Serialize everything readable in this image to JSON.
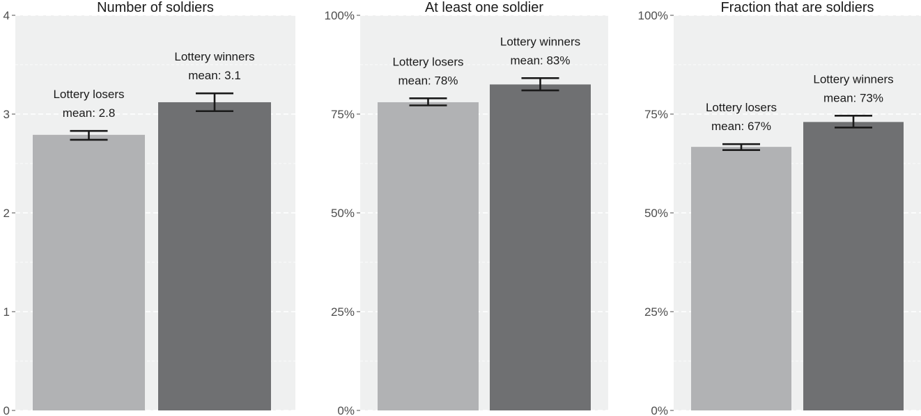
{
  "chart_data": [
    {
      "type": "bar",
      "title": "Number of soldiers",
      "xlabel": "",
      "ylabel": "",
      "ylim": [
        0,
        4
      ],
      "yticks": [
        0,
        1,
        2,
        3,
        4
      ],
      "ytick_labels": [
        "0",
        "1",
        "2",
        "3",
        "4"
      ],
      "grid": true,
      "series": [
        {
          "name": "Lottery losers",
          "value": 2.79,
          "ci": [
            2.74,
            2.83
          ],
          "label_line1": "Lottery losers",
          "label_line2": "mean: 2.8",
          "color": "#b1b2b4"
        },
        {
          "name": "Lottery winners",
          "value": 3.12,
          "ci": [
            3.03,
            3.21
          ],
          "label_line1": "Lottery winners",
          "label_line2": "mean: 3.1",
          "color": "#6f7072"
        }
      ]
    },
    {
      "type": "bar",
      "title": "At least one soldier",
      "xlabel": "",
      "ylabel": "",
      "ylim": [
        0,
        1
      ],
      "yticks": [
        0,
        0.25,
        0.5,
        0.75,
        1
      ],
      "ytick_labels": [
        "0%",
        "25%",
        "50%",
        "75%",
        "100%"
      ],
      "grid": true,
      "series": [
        {
          "name": "Lottery losers",
          "value": 0.78,
          "ci": [
            0.772,
            0.79
          ],
          "label_line1": "Lottery losers",
          "label_line2": "mean: 78%",
          "color": "#b1b2b4"
        },
        {
          "name": "Lottery winners",
          "value": 0.825,
          "ci": [
            0.81,
            0.841
          ],
          "label_line1": "Lottery winners",
          "label_line2": "mean: 83%",
          "color": "#6f7072"
        }
      ]
    },
    {
      "type": "bar",
      "title": "Fraction that are soldiers",
      "xlabel": "",
      "ylabel": "",
      "ylim": [
        0,
        1
      ],
      "yticks": [
        0,
        0.25,
        0.5,
        0.75,
        1
      ],
      "ytick_labels": [
        "0%",
        "25%",
        "50%",
        "75%",
        "100%"
      ],
      "grid": true,
      "series": [
        {
          "name": "Lottery losers",
          "value": 0.667,
          "ci": [
            0.659,
            0.674
          ],
          "label_line1": "Lottery losers",
          "label_line2": "mean: 67%",
          "color": "#b1b2b4"
        },
        {
          "name": "Lottery winners",
          "value": 0.73,
          "ci": [
            0.716,
            0.746
          ],
          "label_line1": "Lottery winners",
          "label_line2": "mean: 73%",
          "color": "#6f7072"
        }
      ]
    }
  ],
  "colors": {
    "panel_background": "#eff0f0",
    "gridline": "#ffffff",
    "losers_bar": "#b1b2b4",
    "winners_bar": "#6f7072",
    "error_bar": "#1a1a1a"
  }
}
